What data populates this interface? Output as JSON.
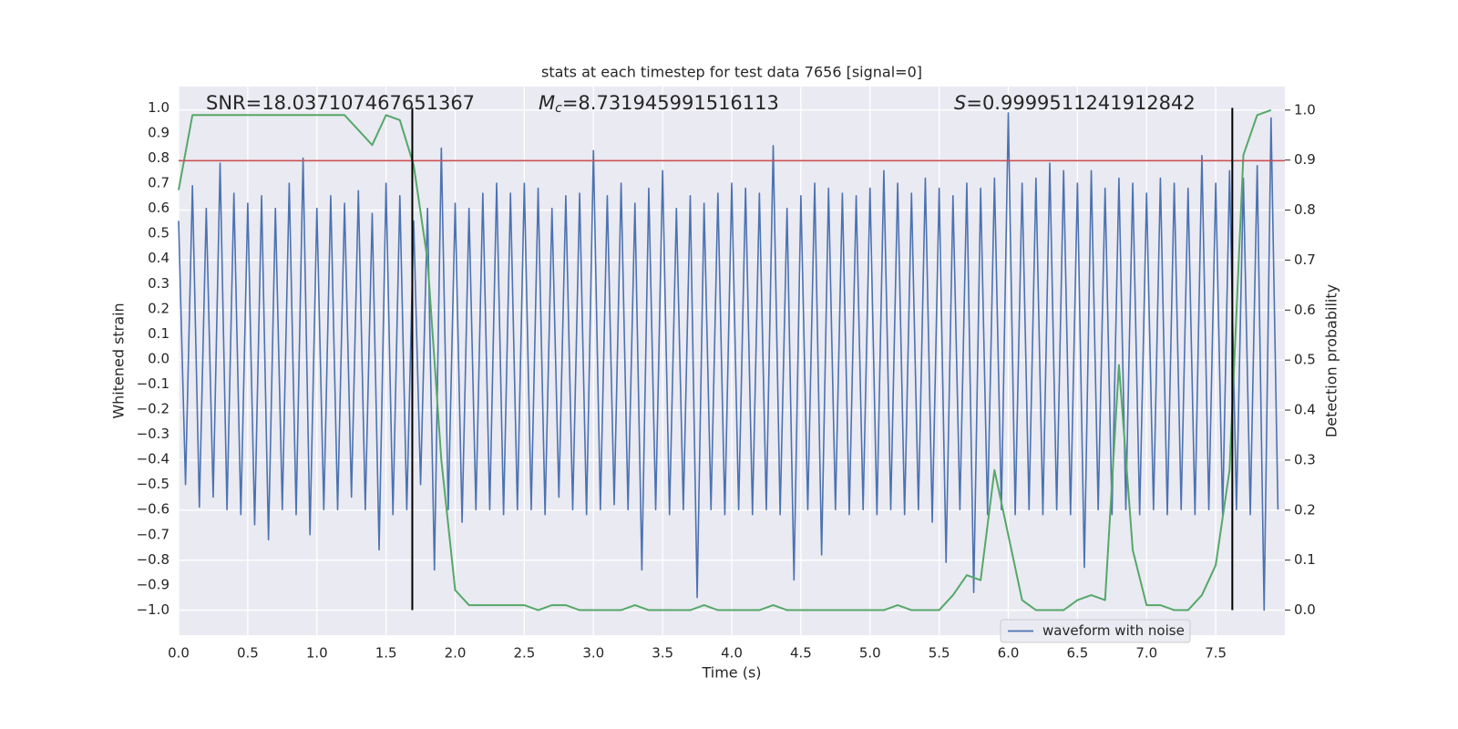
{
  "chart_data": {
    "type": "line",
    "title": "stats at each timestep for test data 7656 [signal=0]",
    "xlabel": "Time (s)",
    "ylabel": "Whitened strain",
    "y2label": "Detection probability",
    "xlim": [
      0,
      8
    ],
    "ylim": [
      -1.1,
      1.085
    ],
    "y2lim": [
      -0.05,
      1.047
    ],
    "xticks": [
      {
        "value": 0,
        "label": "0.0"
      },
      0.5,
      {
        "value": 1,
        "label": "1.0"
      },
      1.5,
      {
        "value": 2,
        "label": "2.0"
      },
      2.5,
      {
        "value": 3,
        "label": "3.0"
      },
      3.5,
      {
        "value": 4,
        "label": "4.0"
      },
      4.5,
      {
        "value": 5,
        "label": "5.0"
      },
      5.5,
      {
        "value": 6,
        "label": "6.0"
      },
      6.5,
      {
        "value": 7,
        "label": "7.0"
      },
      7.5
    ],
    "yticks": [
      {
        "value": -1,
        "label": "−1.0"
      },
      {
        "value": -0.9,
        "label": "−0.9"
      },
      {
        "value": -0.8,
        "label": "−0.8"
      },
      {
        "value": -0.7,
        "label": "−0.7"
      },
      {
        "value": -0.6,
        "label": "−0.6"
      },
      {
        "value": -0.5,
        "label": "−0.5"
      },
      {
        "value": -0.4,
        "label": "−0.4"
      },
      {
        "value": -0.3,
        "label": "−0.3"
      },
      {
        "value": -0.2,
        "label": "−0.2"
      },
      {
        "value": -0.1,
        "label": "−0.1"
      },
      {
        "value": 0,
        "label": "0.0"
      },
      0.1,
      0.2,
      0.3,
      0.4,
      0.5,
      0.6,
      0.7,
      0.8,
      0.9,
      {
        "value": 1,
        "label": "1.0"
      }
    ],
    "y2ticks": [
      {
        "value": 0,
        "label": "0.0"
      },
      0.1,
      0.2,
      0.3,
      0.4,
      0.5,
      0.6,
      0.7,
      0.8,
      0.9,
      {
        "value": 1,
        "label": "1.0"
      }
    ],
    "grid": true,
    "legend_loc": "lower right",
    "annotations": [
      {
        "text": "SNR=18.037107467651367"
      },
      {
        "symbol": "M",
        "sub": "c",
        "text": "=8.731945991516113"
      },
      {
        "symbol": "S",
        "text": "=0.9999511241912842"
      }
    ],
    "hlines": [
      {
        "y": 0.79,
        "color": "#c44e52"
      }
    ],
    "vlines": [
      {
        "x": 1.69,
        "color": "#000000"
      },
      {
        "x": 7.62,
        "color": "#000000"
      }
    ],
    "series": [
      {
        "name": "waveform with noise",
        "color": "#4c72b0",
        "x": [
          0,
          0.05,
          0.1,
          0.15,
          0.2,
          0.25,
          0.3,
          0.35,
          0.4,
          0.45,
          0.5,
          0.55,
          0.6,
          0.65,
          0.7,
          0.75,
          0.8,
          0.85,
          0.9,
          0.95,
          1,
          1.05,
          1.1,
          1.15,
          1.2,
          1.25,
          1.3,
          1.35,
          1.4,
          1.45,
          1.5,
          1.55,
          1.6,
          1.65,
          1.7,
          1.75,
          1.8,
          1.85,
          1.9,
          1.95,
          2,
          2.05,
          2.1,
          2.15,
          2.2,
          2.25,
          2.3,
          2.35,
          2.4,
          2.45,
          2.5,
          2.55,
          2.6,
          2.65,
          2.7,
          2.75,
          2.8,
          2.85,
          2.9,
          2.95,
          3,
          3.05,
          3.1,
          3.15,
          3.2,
          3.25,
          3.3,
          3.35,
          3.4,
          3.45,
          3.5,
          3.55,
          3.6,
          3.65,
          3.7,
          3.75,
          3.8,
          3.85,
          3.9,
          3.95,
          4,
          4.05,
          4.1,
          4.15,
          4.2,
          4.25,
          4.3,
          4.35,
          4.4,
          4.45,
          4.5,
          4.55,
          4.6,
          4.65,
          4.7,
          4.75,
          4.8,
          4.85,
          4.9,
          4.95,
          5,
          5.05,
          5.1,
          5.15,
          5.2,
          5.25,
          5.3,
          5.35,
          5.4,
          5.45,
          5.5,
          5.55,
          5.6,
          5.65,
          5.7,
          5.75,
          5.8,
          5.85,
          5.9,
          5.95,
          6,
          6.05,
          6.1,
          6.15,
          6.2,
          6.25,
          6.3,
          6.35,
          6.4,
          6.45,
          6.5,
          6.55,
          6.6,
          6.65,
          6.7,
          6.75,
          6.8,
          6.85,
          6.9,
          6.95,
          7,
          7.05,
          7.1,
          7.15,
          7.2,
          7.25,
          7.3,
          7.35,
          7.4,
          7.45,
          7.5,
          7.55,
          7.6,
          7.65,
          7.7,
          7.75,
          7.8,
          7.85,
          7.9,
          7.95
        ],
        "values": [
          0.55,
          -0.5,
          0.69,
          -0.59,
          0.6,
          -0.55,
          0.78,
          -0.6,
          0.66,
          -0.62,
          0.62,
          -0.66,
          0.65,
          -0.72,
          0.6,
          -0.6,
          0.7,
          -0.62,
          0.8,
          -0.7,
          0.6,
          -0.6,
          0.65,
          -0.6,
          0.62,
          -0.55,
          0.67,
          -0.6,
          0.58,
          -0.76,
          0.7,
          -0.62,
          0.65,
          -0.6,
          0.55,
          -0.5,
          0.6,
          -0.84,
          0.84,
          -0.6,
          0.62,
          -0.65,
          0.6,
          -0.6,
          0.66,
          -0.6,
          0.7,
          -0.62,
          0.66,
          -0.6,
          0.7,
          -0.6,
          0.68,
          -0.62,
          0.6,
          -0.55,
          0.65,
          -0.6,
          0.66,
          -0.62,
          0.83,
          -0.6,
          0.65,
          -0.58,
          0.7,
          -0.6,
          0.62,
          -0.84,
          0.68,
          -0.6,
          0.75,
          -0.62,
          0.6,
          -0.6,
          0.65,
          -0.95,
          0.62,
          -0.6,
          0.66,
          -0.62,
          0.7,
          -0.6,
          0.68,
          -0.62,
          0.66,
          -0.6,
          0.85,
          -0.62,
          0.6,
          -0.88,
          0.65,
          -0.6,
          0.7,
          -0.78,
          0.68,
          -0.6,
          0.66,
          -0.62,
          0.65,
          -0.6,
          0.68,
          -0.62,
          0.75,
          -0.6,
          0.7,
          -0.62,
          0.66,
          -0.6,
          0.72,
          -0.65,
          0.68,
          -0.81,
          0.65,
          -0.6,
          0.7,
          -0.93,
          0.68,
          -0.62,
          0.72,
          -0.6,
          0.98,
          -0.62,
          0.7,
          -0.6,
          0.72,
          -0.62,
          0.78,
          -0.6,
          0.75,
          -0.62,
          0.7,
          -0.83,
          0.75,
          -0.6,
          0.68,
          -0.62,
          0.72,
          -0.6,
          0.7,
          -0.62,
          0.66,
          -0.6,
          0.72,
          -0.62,
          0.7,
          -0.6,
          0.68,
          -0.62,
          0.81,
          -0.6,
          0.7,
          -0.62,
          0.75,
          -0.6,
          0.72,
          -0.62,
          0.77,
          -1.0,
          0.96,
          -0.6
        ]
      },
      {
        "color": "#55a868",
        "axis": "y2",
        "x": [
          0,
          0.1,
          0.2,
          0.3,
          0.4,
          0.5,
          0.6,
          0.7,
          0.8,
          0.9,
          1,
          1.1,
          1.2,
          1.3,
          1.4,
          1.5,
          1.6,
          1.7,
          1.8,
          1.9,
          2,
          2.1,
          2.2,
          2.3,
          2.4,
          2.5,
          2.6,
          2.7,
          2.8,
          2.9,
          3,
          3.1,
          3.2,
          3.3,
          3.4,
          3.5,
          3.6,
          3.7,
          3.8,
          3.9,
          4,
          4.1,
          4.2,
          4.3,
          4.4,
          4.5,
          4.6,
          4.7,
          4.8,
          4.9,
          5,
          5.1,
          5.2,
          5.3,
          5.4,
          5.5,
          5.6,
          5.7,
          5.8,
          5.9,
          6,
          6.1,
          6.2,
          6.3,
          6.4,
          6.5,
          6.6,
          6.7,
          6.8,
          6.9,
          7,
          7.1,
          7.2,
          7.3,
          7.4,
          7.5,
          7.6,
          7.7,
          7.8,
          7.9
        ],
        "values": [
          0.84,
          0.99,
          0.99,
          0.99,
          0.99,
          0.99,
          0.99,
          0.99,
          0.99,
          0.99,
          0.99,
          0.99,
          0.99,
          0.96,
          0.93,
          0.99,
          0.98,
          0.89,
          0.7,
          0.3,
          0.04,
          0.01,
          0.01,
          0.01,
          0.01,
          0.01,
          0,
          0.01,
          0.01,
          0,
          0,
          0,
          0,
          0.01,
          0,
          0,
          0,
          0,
          0.01,
          0,
          0,
          0,
          0,
          0.01,
          0,
          0,
          0,
          0,
          0,
          0,
          0,
          0,
          0.01,
          0,
          0,
          0,
          0.03,
          0.07,
          0.06,
          0.28,
          0.15,
          0.02,
          0,
          0,
          0,
          0.02,
          0.03,
          0.02,
          0.49,
          0.12,
          0.01,
          0.01,
          0,
          0,
          0.03,
          0.09,
          0.28,
          0.91,
          0.99,
          1.0
        ]
      }
    ]
  }
}
